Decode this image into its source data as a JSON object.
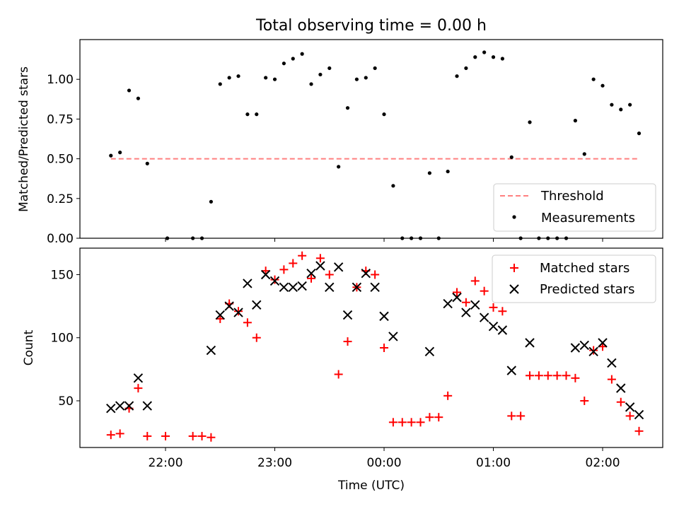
{
  "title": "Total observing time = 0.00 h",
  "colors": {
    "axes": "#000000",
    "measurement_marker": "#000000",
    "threshold_line": "#ff8080",
    "matched_marker": "#ff0000",
    "predicted_marker": "#000000"
  },
  "chart_data": [
    {
      "type": "scatter",
      "panel": "top",
      "title": "Total observing time = 0.00 h",
      "xlabel": "",
      "ylabel": "Matched/Predicted stars",
      "xlim": [
        "21:13",
        "02:33"
      ],
      "ylim": [
        0,
        1.25
      ],
      "x_ticks": [
        "22:00",
        "23:00",
        "00:00",
        "01:00",
        "02:00"
      ],
      "y_ticks": [
        "0.00",
        "0.25",
        "0.50",
        "0.75",
        "1.00"
      ],
      "y_tick_values": [
        0,
        0.25,
        0.5,
        0.75,
        1.0
      ],
      "grid": false,
      "legend_position": "lower right",
      "series": [
        {
          "name": "Threshold",
          "kind": "dashed-line",
          "color": "#ff8080",
          "points": [
            [
              "21:30",
              0.5
            ],
            [
              "02:20",
              0.5
            ]
          ]
        },
        {
          "name": "Measurements",
          "kind": "dot",
          "color": "#000000",
          "points": [
            [
              "21:30",
              0.52
            ],
            [
              "21:35",
              0.54
            ],
            [
              "21:40",
              0.93
            ],
            [
              "21:45",
              0.88
            ],
            [
              "21:50",
              0.47
            ],
            [
              "22:01",
              0.0
            ],
            [
              "22:15",
              0.0
            ],
            [
              "22:20",
              0.0
            ],
            [
              "22:25",
              0.23
            ],
            [
              "22:30",
              0.97
            ],
            [
              "22:35",
              1.01
            ],
            [
              "22:40",
              1.02
            ],
            [
              "22:45",
              0.78
            ],
            [
              "22:50",
              0.78
            ],
            [
              "22:55",
              1.01
            ],
            [
              "23:00",
              1.0
            ],
            [
              "23:05",
              1.1
            ],
            [
              "23:10",
              1.13
            ],
            [
              "23:15",
              1.16
            ],
            [
              "23:20",
              0.97
            ],
            [
              "23:25",
              1.03
            ],
            [
              "23:30",
              1.07
            ],
            [
              "23:35",
              0.45
            ],
            [
              "23:40",
              0.82
            ],
            [
              "23:45",
              1.0
            ],
            [
              "23:50",
              1.01
            ],
            [
              "23:55",
              1.07
            ],
            [
              "00:00",
              0.78
            ],
            [
              "00:05",
              0.33
            ],
            [
              "00:10",
              0.0
            ],
            [
              "00:15",
              0.0
            ],
            [
              "00:20",
              0.0
            ],
            [
              "00:25",
              0.41
            ],
            [
              "00:30",
              0.0
            ],
            [
              "00:35",
              0.42
            ],
            [
              "00:40",
              1.02
            ],
            [
              "00:45",
              1.07
            ],
            [
              "00:50",
              1.14
            ],
            [
              "00:55",
              1.17
            ],
            [
              "01:00",
              1.14
            ],
            [
              "01:05",
              1.13
            ],
            [
              "01:10",
              0.51
            ],
            [
              "01:15",
              0.0
            ],
            [
              "01:20",
              0.73
            ],
            [
              "01:25",
              0.0
            ],
            [
              "01:30",
              0.0
            ],
            [
              "01:35",
              0.0
            ],
            [
              "01:40",
              0.0
            ],
            [
              "01:45",
              0.74
            ],
            [
              "01:50",
              0.53
            ],
            [
              "01:55",
              1.0
            ],
            [
              "02:00",
              0.96
            ],
            [
              "02:05",
              0.84
            ],
            [
              "02:10",
              0.81
            ],
            [
              "02:15",
              0.84
            ],
            [
              "02:20",
              0.66
            ]
          ]
        }
      ]
    },
    {
      "type": "scatter",
      "panel": "bottom",
      "title": "",
      "xlabel": "Time (UTC)",
      "ylabel": "Count",
      "xlim": [
        "21:13",
        "02:33"
      ],
      "ylim": [
        13,
        171
      ],
      "x_ticks": [
        "22:00",
        "23:00",
        "00:00",
        "01:00",
        "02:00"
      ],
      "y_ticks": [
        "50",
        "100",
        "150"
      ],
      "y_tick_values": [
        50,
        100,
        150
      ],
      "grid": false,
      "legend_position": "upper right",
      "series": [
        {
          "name": "Matched stars",
          "kind": "plus",
          "color": "#ff0000",
          "points": [
            [
              "21:30",
              23
            ],
            [
              "21:35",
              24
            ],
            [
              "21:40",
              44
            ],
            [
              "21:45",
              60
            ],
            [
              "21:50",
              22
            ],
            [
              "22:00",
              22
            ],
            [
              "22:15",
              22
            ],
            [
              "22:20",
              22
            ],
            [
              "22:25",
              21
            ],
            [
              "22:30",
              115
            ],
            [
              "22:35",
              127
            ],
            [
              "22:40",
              121
            ],
            [
              "22:45",
              112
            ],
            [
              "22:50",
              100
            ],
            [
              "22:55",
              153
            ],
            [
              "23:00",
              146
            ],
            [
              "23:05",
              154
            ],
            [
              "23:10",
              159
            ],
            [
              "23:15",
              165
            ],
            [
              "23:20",
              147
            ],
            [
              "23:25",
              163
            ],
            [
              "23:30",
              150
            ],
            [
              "23:35",
              71
            ],
            [
              "23:40",
              97
            ],
            [
              "23:45",
              140
            ],
            [
              "23:50",
              153
            ],
            [
              "23:55",
              150
            ],
            [
              "00:00",
              92
            ],
            [
              "00:05",
              33
            ],
            [
              "00:10",
              33
            ],
            [
              "00:15",
              33
            ],
            [
              "00:20",
              33
            ],
            [
              "00:25",
              37
            ],
            [
              "00:30",
              37
            ],
            [
              "00:35",
              54
            ],
            [
              "00:40",
              136
            ],
            [
              "00:45",
              128
            ],
            [
              "00:50",
              145
            ],
            [
              "00:55",
              137
            ],
            [
              "01:00",
              124
            ],
            [
              "01:05",
              121
            ],
            [
              "01:10",
              38
            ],
            [
              "01:15",
              38
            ],
            [
              "01:20",
              70
            ],
            [
              "01:25",
              70
            ],
            [
              "01:30",
              70
            ],
            [
              "01:35",
              70
            ],
            [
              "01:40",
              70
            ],
            [
              "01:45",
              68
            ],
            [
              "01:50",
              50
            ],
            [
              "01:55",
              90
            ],
            [
              "02:00",
              93
            ],
            [
              "02:05",
              67
            ],
            [
              "02:10",
              49
            ],
            [
              "02:15",
              38
            ],
            [
              "02:20",
              26
            ]
          ]
        },
        {
          "name": "Predicted stars",
          "kind": "x",
          "color": "#000000",
          "points": [
            [
              "21:30",
              44
            ],
            [
              "21:35",
              46
            ],
            [
              "21:40",
              46
            ],
            [
              "21:45",
              68
            ],
            [
              "21:50",
              46
            ],
            [
              "22:25",
              90
            ],
            [
              "22:30",
              118
            ],
            [
              "22:35",
              125
            ],
            [
              "22:40",
              120
            ],
            [
              "22:45",
              143
            ],
            [
              "22:50",
              126
            ],
            [
              "22:55",
              150
            ],
            [
              "23:00",
              145
            ],
            [
              "23:05",
              140
            ],
            [
              "23:10",
              140
            ],
            [
              "23:15",
              141
            ],
            [
              "23:20",
              151
            ],
            [
              "23:25",
              157
            ],
            [
              "23:30",
              140
            ],
            [
              "23:35",
              156
            ],
            [
              "23:40",
              118
            ],
            [
              "23:45",
              140
            ],
            [
              "23:50",
              151
            ],
            [
              "23:55",
              140
            ],
            [
              "00:00",
              117
            ],
            [
              "00:05",
              101
            ],
            [
              "00:25",
              89
            ],
            [
              "00:35",
              127
            ],
            [
              "00:40",
              132
            ],
            [
              "00:45",
              120
            ],
            [
              "00:50",
              126
            ],
            [
              "00:55",
              116
            ],
            [
              "01:00",
              109
            ],
            [
              "01:05",
              106
            ],
            [
              "01:10",
              74
            ],
            [
              "01:20",
              96
            ],
            [
              "01:45",
              92
            ],
            [
              "01:50",
              94
            ],
            [
              "01:55",
              89
            ],
            [
              "02:00",
              96
            ],
            [
              "02:05",
              80
            ],
            [
              "02:10",
              60
            ],
            [
              "02:15",
              45
            ],
            [
              "02:20",
              39
            ]
          ]
        }
      ]
    }
  ]
}
